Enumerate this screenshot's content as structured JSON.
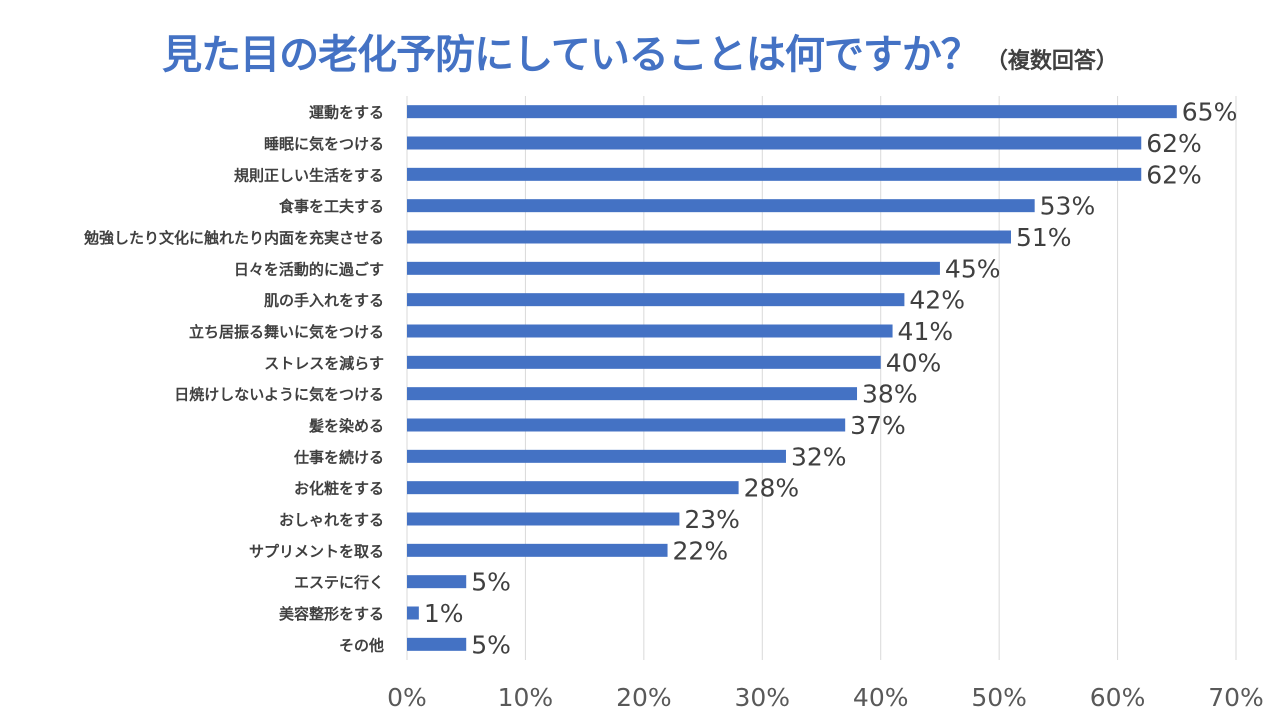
{
  "chart_data": {
    "type": "bar",
    "orientation": "horizontal",
    "title": "見た目の老化予防にしていることは何ですか？",
    "subtitle": "（複数回答）",
    "categories": [
      "運動をする",
      "睡眠に気をつける",
      "規則正しい生活をする",
      "食事を工夫する",
      "勉強したり文化に触れたり内面を充実させる",
      "日々を活動的に過ごす",
      "肌の手入れをする",
      "立ち居振る舞いに気をつける",
      "ストレスを減らす",
      "日焼けしないように気をつける",
      "髪を染める",
      "仕事を続ける",
      "お化粧をする",
      "おしゃれをする",
      "サプリメントを取る",
      "エステに行く",
      "美容整形をする",
      "その他"
    ],
    "values": [
      65,
      62,
      62,
      53,
      51,
      45,
      42,
      41,
      40,
      38,
      37,
      32,
      28,
      23,
      22,
      5,
      1,
      5
    ],
    "value_suffix": "%",
    "xlim": [
      0,
      70
    ],
    "xticks": [
      0,
      10,
      20,
      30,
      40,
      50,
      60,
      70
    ],
    "xtick_labels": [
      "0%",
      "10%",
      "20%",
      "30%",
      "40%",
      "50%",
      "60%",
      "70%"
    ],
    "xlabel": "",
    "ylabel": "",
    "grid": "vertical",
    "legend": "none",
    "bar_color": "#4472c4"
  }
}
